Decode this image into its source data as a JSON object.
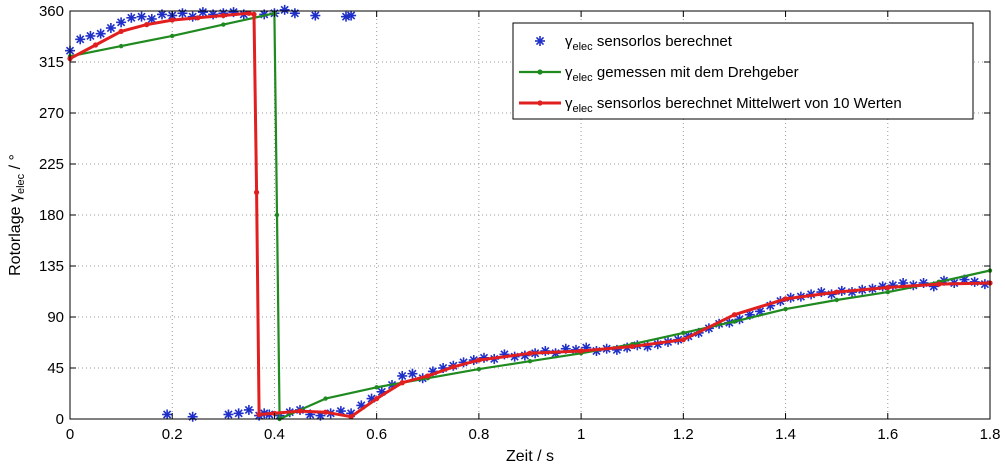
{
  "chart_data": {
    "type": "line",
    "xlabel": "Zeit / s",
    "ylabel_main": "Rotorlage ",
    "ylabel_symbol": "γ",
    "ylabel_sub": "elec",
    "ylabel_unit": " / °",
    "xlim": [
      0,
      1.8
    ],
    "ylim": [
      0,
      360
    ],
    "xticks": [
      0,
      0.2,
      0.4,
      0.6,
      0.8,
      1,
      1.2,
      1.4,
      1.6,
      1.8
    ],
    "xtick_labels": [
      "0",
      "0.2",
      "0.4",
      "0.6",
      "0.8",
      "1",
      "1.2",
      "1.4",
      "1.6",
      "1.8"
    ],
    "yticks": [
      0,
      45,
      90,
      135,
      180,
      225,
      270,
      315,
      360
    ],
    "ytick_labels": [
      "0",
      "45",
      "90",
      "135",
      "180",
      "225",
      "270",
      "315",
      "360"
    ],
    "grid": "dotted",
    "legend_position": "top-right",
    "series": [
      {
        "name": "sensorlos berechnet",
        "symbol": "γ",
        "sub": "elec",
        "color": "#1f2fc8",
        "style": "markers",
        "marker": "asterisk",
        "x": [
          0.0,
          0.02,
          0.04,
          0.06,
          0.08,
          0.1,
          0.12,
          0.14,
          0.16,
          0.18,
          0.2,
          0.22,
          0.24,
          0.26,
          0.28,
          0.3,
          0.32,
          0.34,
          0.38,
          0.4,
          0.42,
          0.44,
          0.48,
          0.54,
          0.55,
          0.19,
          0.24,
          0.31,
          0.33,
          0.35,
          0.37,
          0.38,
          0.39,
          0.41,
          0.43,
          0.45,
          0.47,
          0.49,
          0.51,
          0.53,
          0.55,
          0.57,
          0.59,
          0.61,
          0.63,
          0.65,
          0.67,
          0.69,
          0.71,
          0.73,
          0.75,
          0.77,
          0.79,
          0.81,
          0.83,
          0.85,
          0.87,
          0.89,
          0.91,
          0.93,
          0.95,
          0.97,
          0.99,
          1.01,
          1.03,
          1.05,
          1.07,
          1.09,
          1.11,
          1.13,
          1.15,
          1.17,
          1.19,
          1.21,
          1.23,
          1.25,
          1.27,
          1.29,
          1.31,
          1.33,
          1.35,
          1.37,
          1.39,
          1.41,
          1.43,
          1.45,
          1.47,
          1.49,
          1.51,
          1.53,
          1.55,
          1.57,
          1.59,
          1.61,
          1.63,
          1.65,
          1.67,
          1.69,
          1.71,
          1.73,
          1.75,
          1.77,
          1.79
        ],
        "y": [
          325,
          335,
          338,
          340,
          345,
          350,
          354,
          355,
          353,
          357,
          356,
          358,
          355,
          359,
          357,
          358,
          359,
          357,
          357,
          358,
          361,
          358,
          356,
          355,
          356,
          4,
          2,
          4,
          5,
          8,
          3,
          5,
          4,
          3,
          6,
          8,
          4,
          3,
          5,
          7,
          5,
          12,
          18,
          24,
          30,
          38,
          40,
          36,
          42,
          45,
          47,
          50,
          52,
          54,
          53,
          57,
          55,
          56,
          58,
          60,
          58,
          62,
          61,
          63,
          60,
          62,
          61,
          63,
          65,
          64,
          66,
          68,
          70,
          73,
          76,
          80,
          84,
          85,
          88,
          92,
          95,
          100,
          104,
          107,
          108,
          110,
          112,
          110,
          113,
          112,
          114,
          115,
          117,
          118,
          120,
          118,
          120,
          117,
          122,
          120,
          123,
          121,
          119
        ]
      },
      {
        "name": "gemessen mit dem Drehgeber",
        "symbol": "γ",
        "sub": "elec",
        "color": "#1f8a1f",
        "style": "line-dots",
        "x": [
          0.0,
          0.1,
          0.2,
          0.3,
          0.4,
          0.405,
          0.41,
          0.5,
          0.6,
          0.7,
          0.8,
          0.9,
          1.0,
          1.1,
          1.2,
          1.3,
          1.4,
          1.5,
          1.6,
          1.7,
          1.8
        ],
        "y": [
          320,
          329,
          338,
          348,
          358,
          180,
          0,
          18,
          28,
          36,
          44,
          51,
          58,
          66,
          76,
          86,
          97,
          105,
          112,
          121,
          131
        ]
      },
      {
        "name": "sensorlos berechnet Mittelwert von 10 Werten",
        "symbol": "γ",
        "sub": "elec",
        "color": "#e21f1f",
        "style": "line-dots",
        "x": [
          0.0,
          0.05,
          0.1,
          0.15,
          0.2,
          0.25,
          0.3,
          0.35,
          0.36,
          0.365,
          0.37,
          0.4,
          0.45,
          0.5,
          0.55,
          0.6,
          0.65,
          0.7,
          0.75,
          0.8,
          0.9,
          1.0,
          1.1,
          1.2,
          1.3,
          1.4,
          1.5,
          1.6,
          1.7,
          1.8
        ],
        "y": [
          318,
          330,
          342,
          348,
          352,
          354,
          356,
          358,
          357,
          200,
          4,
          5,
          7,
          6,
          2,
          18,
          32,
          38,
          46,
          52,
          58,
          60,
          64,
          70,
          92,
          106,
          112,
          116,
          119,
          120
        ]
      }
    ]
  }
}
